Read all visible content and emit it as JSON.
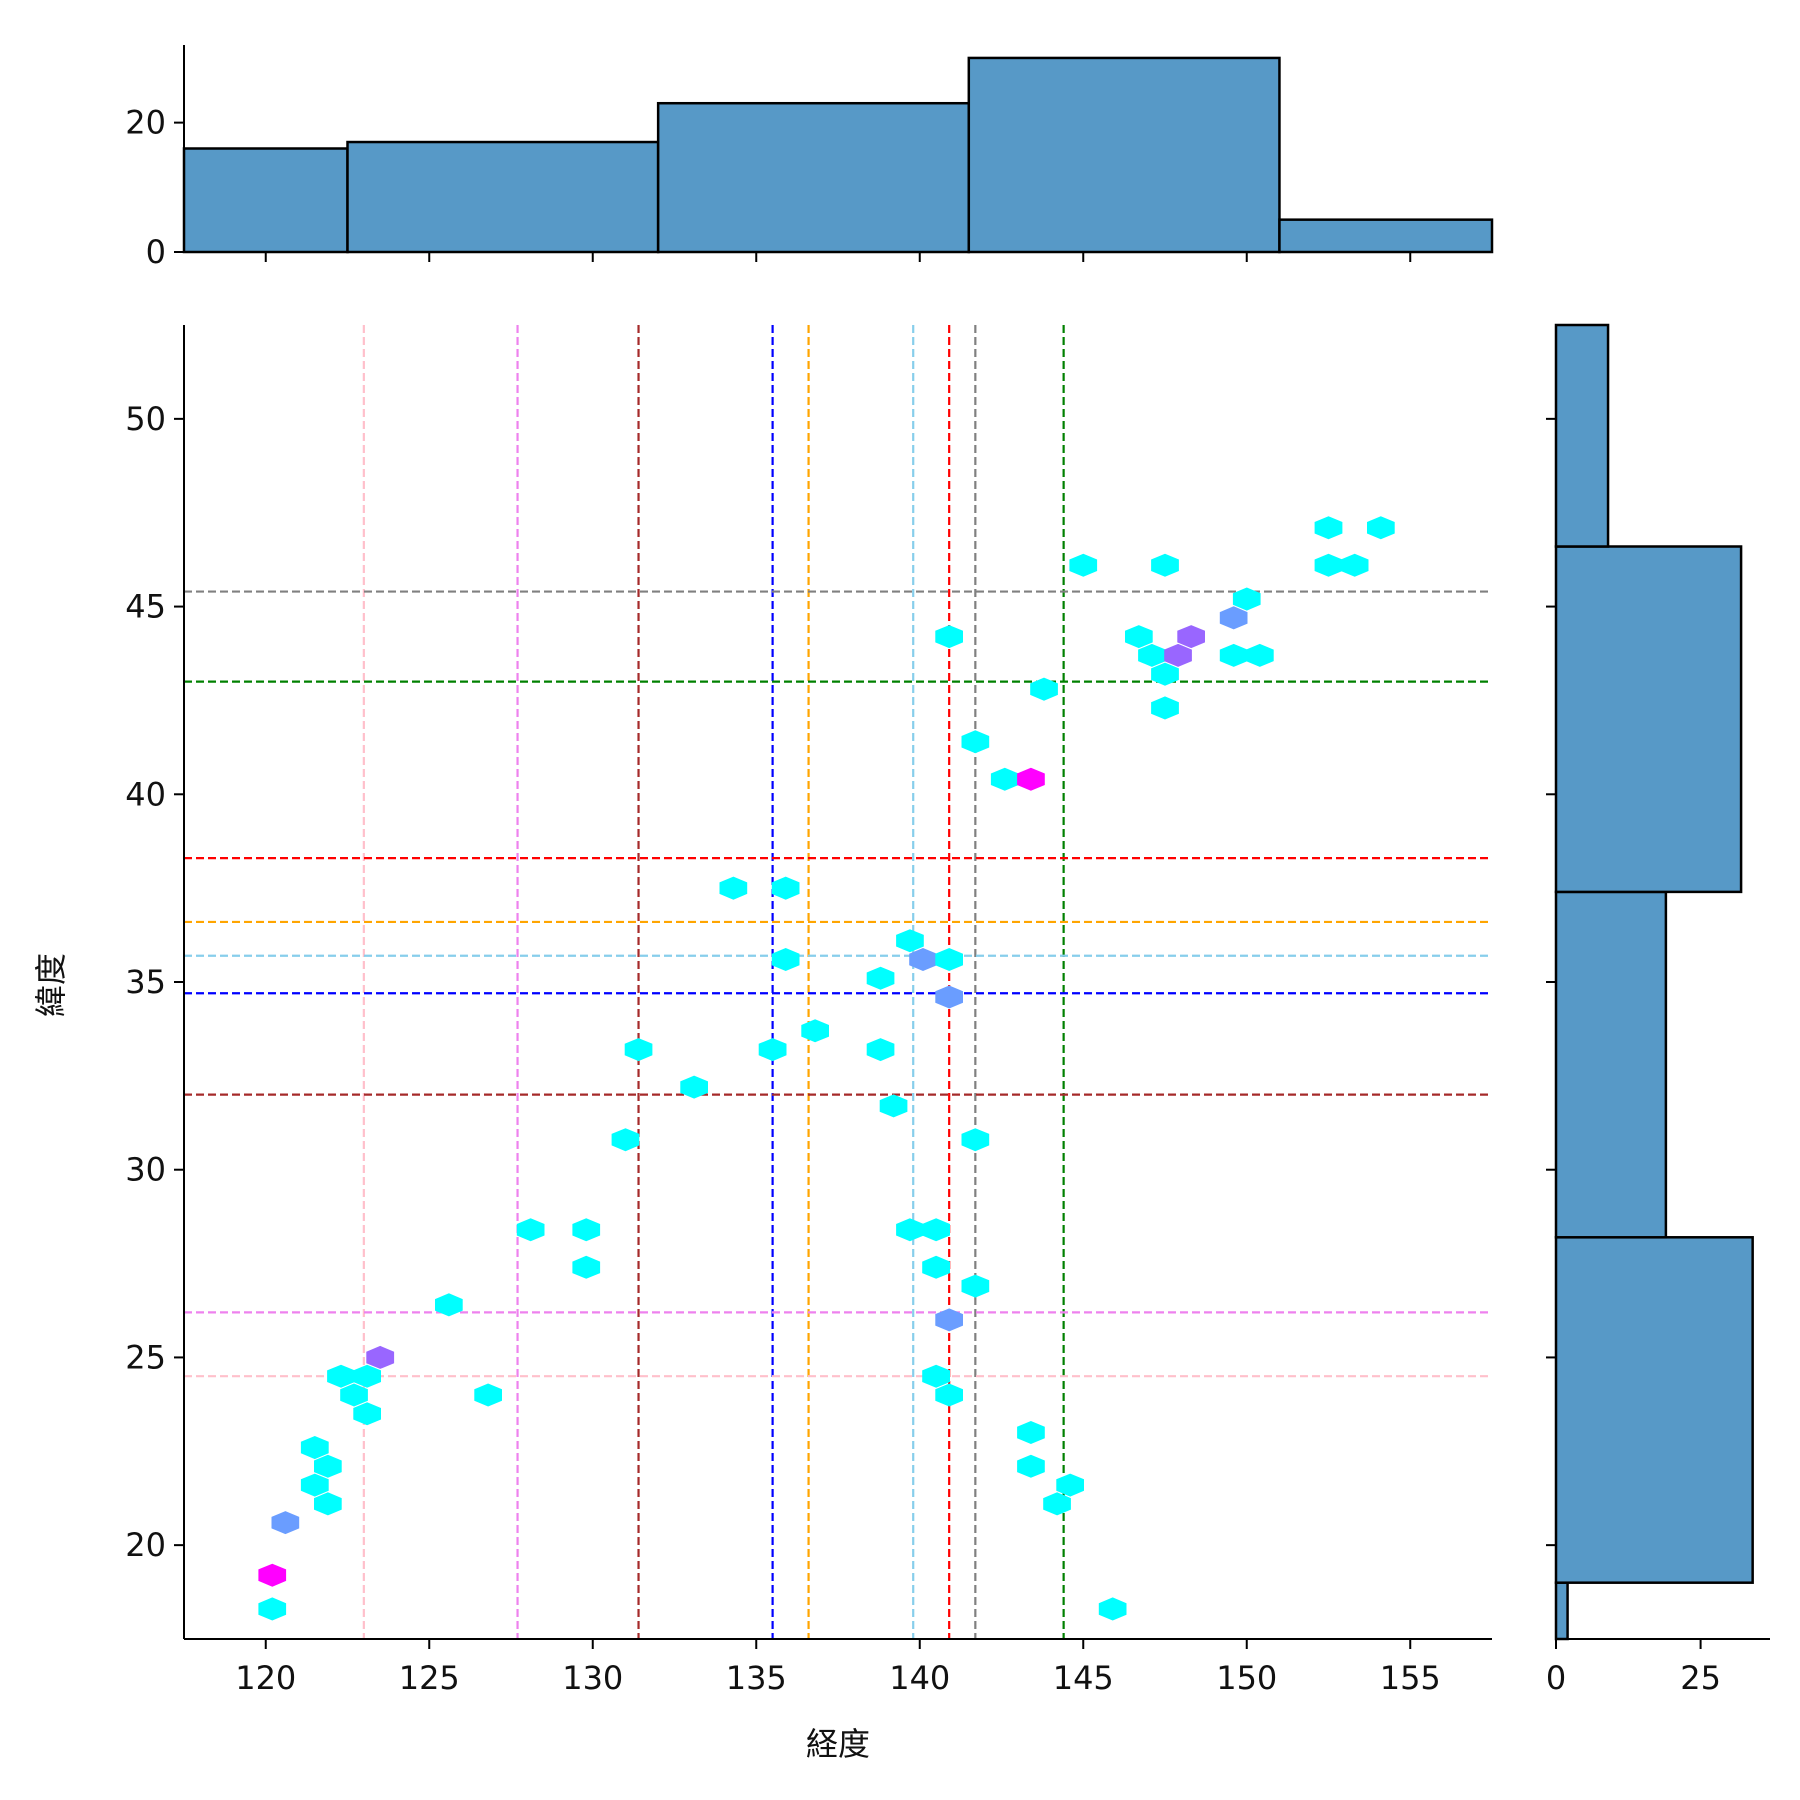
{
  "chart_data": {
    "type": "jointplot-hexbin",
    "xlabel": "経度",
    "ylabel": "緯度",
    "xlim": [
      117.5,
      157.5
    ],
    "ylim": [
      17.5,
      52.5
    ],
    "xticks": [
      120,
      125,
      130,
      135,
      140,
      145,
      150,
      155
    ],
    "yticks": [
      20,
      25,
      30,
      35,
      40,
      45,
      50
    ],
    "colors": {
      "bar_fill": "#5799c7",
      "bar_edge": "#000000",
      "hex_levels": [
        "#00ffff",
        "#6a9dff",
        "#9966ff",
        "#ff00ff"
      ]
    },
    "marginal_x": {
      "bins": [
        [
          117.5,
          122.5,
          16
        ],
        [
          122.5,
          132.0,
          17
        ],
        [
          132.0,
          141.5,
          23
        ],
        [
          141.5,
          151.0,
          30
        ],
        [
          151.0,
          157.5,
          5
        ]
      ],
      "yticks": [
        0,
        20
      ],
      "ymax": 32
    },
    "marginal_y": {
      "bins": [
        [
          17.5,
          19.0,
          2
        ],
        [
          19.0,
          28.2,
          34
        ],
        [
          28.2,
          37.4,
          19
        ],
        [
          37.4,
          46.6,
          32
        ],
        [
          46.6,
          52.5,
          9
        ]
      ],
      "xticks": [
        0,
        25
      ],
      "xmax": 37
    },
    "hexbins": [
      [
        120.2,
        18.3,
        1
      ],
      [
        120.2,
        19.2,
        4
      ],
      [
        120.6,
        20.6,
        2
      ],
      [
        121.5,
        21.6,
        1
      ],
      [
        121.5,
        22.6,
        1
      ],
      [
        121.9,
        22.1,
        1
      ],
      [
        121.9,
        21.1,
        1
      ],
      [
        122.3,
        24.5,
        1
      ],
      [
        122.7,
        24.0,
        1
      ],
      [
        123.1,
        23.5,
        1
      ],
      [
        123.1,
        24.5,
        1
      ],
      [
        123.5,
        25.0,
        3
      ],
      [
        125.6,
        26.4,
        1
      ],
      [
        126.8,
        24.0,
        1
      ],
      [
        128.1,
        28.4,
        1
      ],
      [
        129.8,
        28.4,
        1
      ],
      [
        129.8,
        27.4,
        1
      ],
      [
        131.0,
        30.8,
        1
      ],
      [
        131.4,
        33.2,
        1
      ],
      [
        133.1,
        32.2,
        1
      ],
      [
        134.3,
        37.5,
        1
      ],
      [
        135.5,
        33.2,
        1
      ],
      [
        135.9,
        37.5,
        1
      ],
      [
        135.9,
        35.6,
        1
      ],
      [
        136.8,
        33.7,
        1
      ],
      [
        138.8,
        35.1,
        1
      ],
      [
        138.8,
        33.2,
        1
      ],
      [
        139.2,
        31.7,
        1
      ],
      [
        139.7,
        36.1,
        1
      ],
      [
        139.7,
        28.4,
        1
      ],
      [
        140.1,
        35.6,
        2
      ],
      [
        140.5,
        28.4,
        1
      ],
      [
        140.5,
        27.4,
        1
      ],
      [
        140.9,
        35.6,
        1
      ],
      [
        140.9,
        34.6,
        2
      ],
      [
        140.9,
        26.0,
        2
      ],
      [
        140.5,
        24.5,
        1
      ],
      [
        140.9,
        24.0,
        1
      ],
      [
        140.9,
        44.2,
        1
      ],
      [
        141.7,
        41.4,
        1
      ],
      [
        141.7,
        30.8,
        1
      ],
      [
        141.7,
        26.9,
        1
      ],
      [
        142.6,
        40.4,
        1
      ],
      [
        143.4,
        40.4,
        4
      ],
      [
        143.4,
        23.0,
        1
      ],
      [
        143.4,
        22.1,
        1
      ],
      [
        143.8,
        42.8,
        1
      ],
      [
        144.2,
        21.1,
        1
      ],
      [
        144.6,
        21.6,
        1
      ],
      [
        145.0,
        46.1,
        1
      ],
      [
        145.9,
        18.3,
        1
      ],
      [
        146.7,
        44.2,
        1
      ],
      [
        147.1,
        43.7,
        1
      ],
      [
        147.5,
        43.2,
        1
      ],
      [
        147.5,
        42.3,
        1
      ],
      [
        147.5,
        46.1,
        1
      ],
      [
        147.9,
        43.7,
        3
      ],
      [
        148.3,
        44.2,
        3
      ],
      [
        149.6,
        44.7,
        2
      ],
      [
        149.6,
        43.7,
        1
      ],
      [
        150.0,
        45.2,
        1
      ],
      [
        150.4,
        43.7,
        1
      ],
      [
        152.5,
        47.1,
        1
      ],
      [
        152.5,
        46.1,
        1
      ],
      [
        153.3,
        46.1,
        1
      ],
      [
        154.1,
        47.1,
        1
      ]
    ],
    "vlines": [
      {
        "x": 123.0,
        "color": "#ffc0cb"
      },
      {
        "x": 127.7,
        "color": "#ee82ee"
      },
      {
        "x": 131.4,
        "color": "#a52a2a"
      },
      {
        "x": 135.5,
        "color": "#0000ff"
      },
      {
        "x": 136.6,
        "color": "#ffa500"
      },
      {
        "x": 139.8,
        "color": "#87ceeb"
      },
      {
        "x": 140.9,
        "color": "#ff0000"
      },
      {
        "x": 141.7,
        "color": "#808080"
      },
      {
        "x": 144.4,
        "color": "#008000"
      }
    ],
    "hlines": [
      {
        "y": 24.5,
        "color": "#ffc0cb"
      },
      {
        "y": 26.2,
        "color": "#ee82ee"
      },
      {
        "y": 32.0,
        "color": "#a52a2a"
      },
      {
        "y": 34.7,
        "color": "#0000ff"
      },
      {
        "y": 36.6,
        "color": "#ffa500"
      },
      {
        "y": 35.7,
        "color": "#87ceeb"
      },
      {
        "y": 38.3,
        "color": "#ff0000"
      },
      {
        "y": 45.4,
        "color": "#808080"
      },
      {
        "y": 43.0,
        "color": "#008000"
      }
    ]
  }
}
